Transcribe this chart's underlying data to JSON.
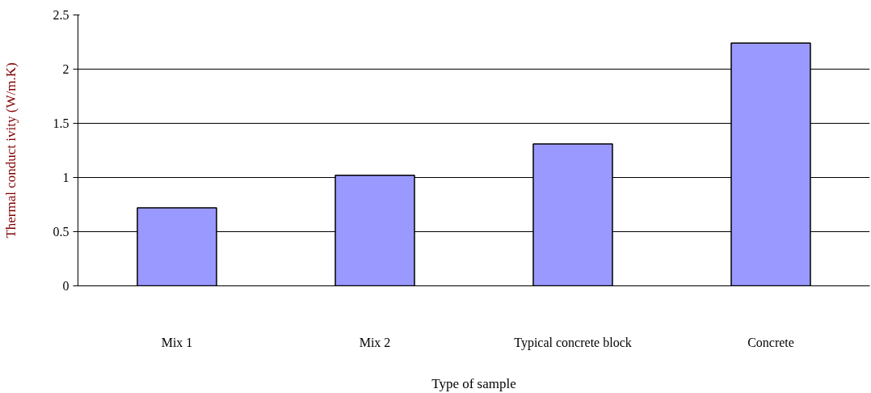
{
  "chart_data": {
    "type": "bar",
    "xlabel": "Type of sample",
    "ylabel": "Thermal conduct ivity (W/m.K)",
    "categories": [
      "Mix 1",
      "Mix 2",
      "Typical concrete block",
      "Concrete"
    ],
    "values": [
      0.72,
      1.02,
      1.31,
      2.24
    ],
    "color": "#9999ff",
    "ylim": [
      0,
      2.5
    ],
    "yticks": [
      0,
      0.5,
      1,
      1.5,
      2,
      2.5
    ],
    "grid": "y"
  }
}
